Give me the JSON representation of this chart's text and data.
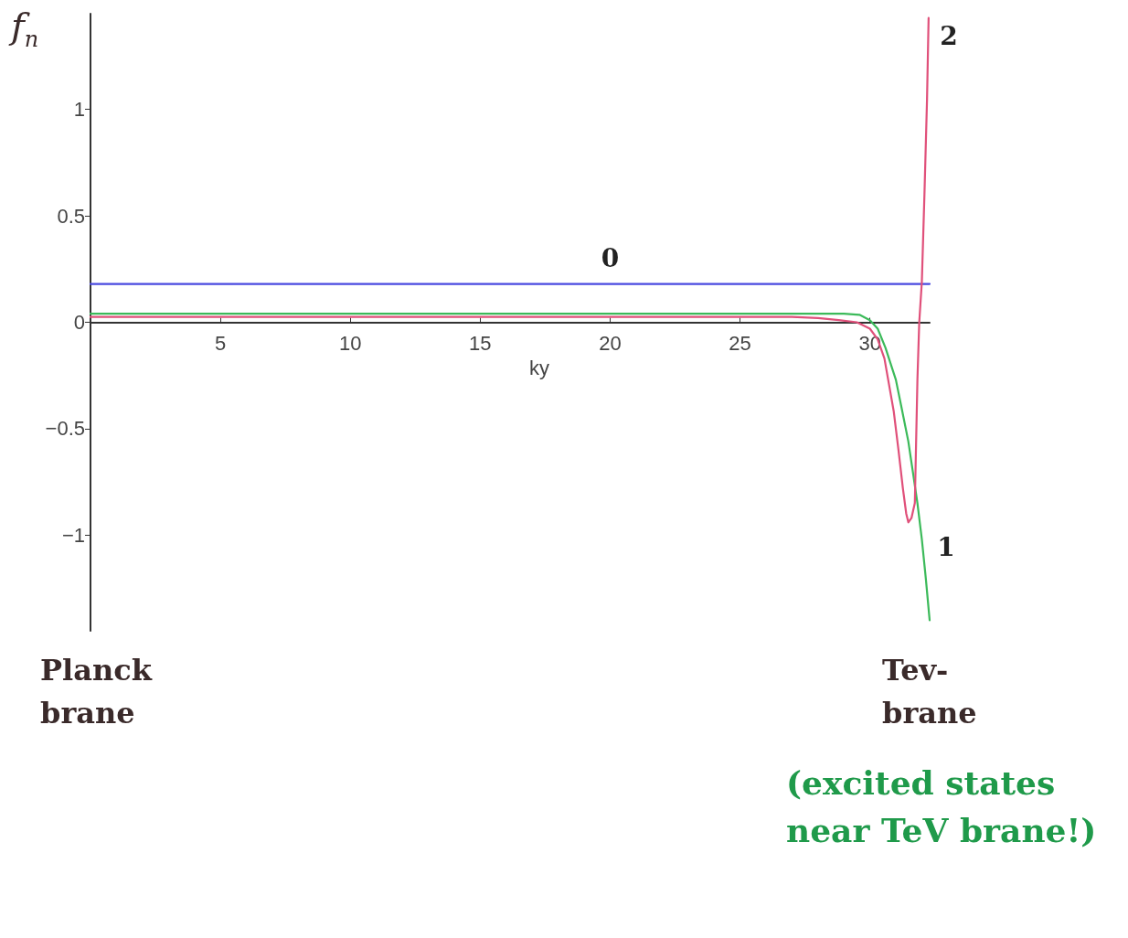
{
  "chart_data": {
    "type": "line",
    "xlabel": "ky",
    "ylabel": "f$_{n}$",
    "xlim": [
      0,
      32.3
    ],
    "ylim": [
      -1.45,
      1.45
    ],
    "xticks": [
      5,
      10,
      15,
      20,
      25,
      30
    ],
    "yticks": [
      -1,
      -0.5,
      0,
      0.5,
      1
    ],
    "marker": "none",
    "line_style": "solid",
    "series": [
      {
        "color": "#4a4ae0",
        "x": [
          0,
          10,
          20,
          32.3
        ],
        "values": [
          0.18,
          0.18,
          0.18,
          0.18
        ]
      },
      {
        "color": "#3cba5a",
        "x": [
          0,
          10,
          20,
          28,
          29,
          29.6,
          30,
          30.3,
          30.6,
          31,
          31.2,
          31.48,
          31.65,
          31.83,
          32,
          32.15,
          32.3
        ],
        "values": [
          0.04,
          0.04,
          0.04,
          0.04,
          0.04,
          0.035,
          0.01,
          -0.03,
          -0.12,
          -0.27,
          -0.39,
          -0.56,
          -0.7,
          -0.85,
          -1.02,
          -1.2,
          -1.4
        ]
      },
      {
        "color": "#e0507a",
        "x": [
          0,
          10,
          20,
          27,
          28,
          28.8,
          29.5,
          30,
          30.3,
          30.56,
          30.92,
          31.1,
          31.27,
          31.4,
          31.48,
          31.6,
          31.73,
          31.83,
          31.9,
          32,
          32.1,
          32.2,
          32.26
        ],
        "values": [
          0.025,
          0.025,
          0.025,
          0.025,
          0.02,
          0.01,
          0,
          -0.03,
          -0.08,
          -0.17,
          -0.42,
          -0.6,
          -0.78,
          -0.9,
          -0.94,
          -0.92,
          -0.85,
          -0.27,
          0,
          0.19,
          0.6,
          1.05,
          1.43
        ]
      }
    ],
    "annotations": [
      {
        "text": "0",
        "x": 20,
        "y": 0.18
      },
      {
        "text": "1",
        "x": 32.3,
        "y": -1.4
      },
      {
        "text": "2",
        "x": 32.26,
        "y": 1.43
      },
      "Planck brane",
      "Tev- brane",
      "(excited states near TeV brane!)"
    ]
  }
}
